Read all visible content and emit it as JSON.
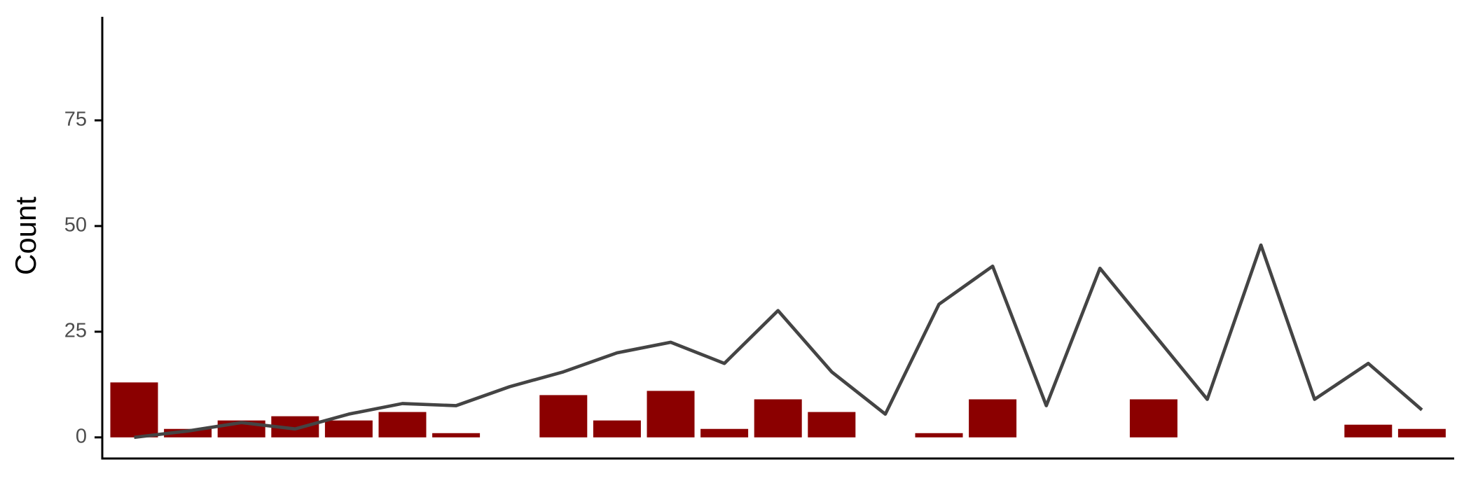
{
  "chart_data": {
    "type": "bar",
    "ylabel": "Count",
    "categories": [
      null,
      null,
      null,
      null,
      null,
      null,
      null,
      null,
      null,
      null,
      null,
      null,
      null,
      null,
      null,
      null,
      null,
      null,
      null,
      null,
      null,
      null,
      null,
      null,
      null
    ],
    "series": [
      {
        "type": "bar",
        "color": "#8b0000",
        "values": [
          13,
          2,
          4,
          5,
          4,
          6,
          1,
          0,
          10,
          4,
          11,
          2,
          9,
          6,
          0,
          1,
          9,
          0,
          0,
          9,
          0,
          0,
          0,
          3,
          2
        ]
      },
      {
        "type": "line",
        "color": "#444444",
        "values": [
          0,
          1.5,
          3.5,
          2,
          5.5,
          8,
          7.5,
          12,
          15.5,
          20,
          22.5,
          17.5,
          30,
          15.5,
          5.5,
          31.5,
          40.5,
          7.5,
          40,
          24.5,
          9,
          45.5,
          9,
          17.5,
          6.5
        ]
      }
    ],
    "ylim": [
      -5,
      100
    ],
    "yticks": [
      0,
      25,
      50,
      75
    ],
    "grid": false
  }
}
